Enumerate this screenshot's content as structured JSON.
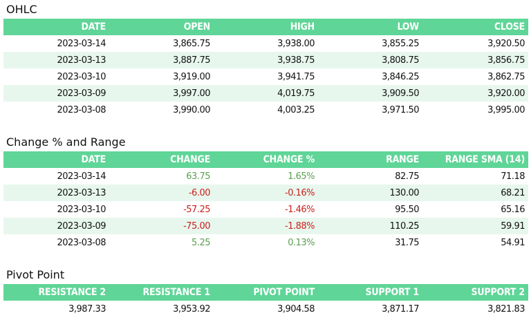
{
  "ohlc": {
    "title": "OHLC",
    "headers": [
      "DATE",
      "OPEN",
      "HIGH",
      "LOW",
      "CLOSE"
    ],
    "rows": [
      [
        "2023-03-14",
        "3,865.75",
        "3,938.00",
        "3,855.25",
        "3,920.50"
      ],
      [
        "2023-03-13",
        "3,887.75",
        "3,938.75",
        "3,808.75",
        "3,856.75"
      ],
      [
        "2023-03-10",
        "3,919.00",
        "3,941.75",
        "3,846.25",
        "3,862.75"
      ],
      [
        "2023-03-09",
        "3,997.00",
        "4,019.75",
        "3,909.50",
        "3,920.00"
      ],
      [
        "2023-03-08",
        "3,990.00",
        "4,003.25",
        "3,971.50",
        "3,995.00"
      ]
    ]
  },
  "change": {
    "title": "Change % and Range",
    "headers": [
      "DATE",
      "CHANGE",
      "CHANGE %",
      "RANGE",
      "RANGE SMA (14)"
    ],
    "rows": [
      [
        "2023-03-14",
        "63.75",
        "1.65%",
        "82.75",
        "71.18"
      ],
      [
        "2023-03-13",
        "-6.00",
        "-0.16%",
        "130.00",
        "68.21"
      ],
      [
        "2023-03-10",
        "-57.25",
        "-1.46%",
        "95.50",
        "65.16"
      ],
      [
        "2023-03-09",
        "-75.00",
        "-1.88%",
        "110.25",
        "59.91"
      ],
      [
        "2023-03-08",
        "5.25",
        "0.13%",
        "31.75",
        "54.91"
      ]
    ],
    "direction": [
      "positive",
      "negative",
      "negative",
      "negative",
      "positive"
    ]
  },
  "pivot": {
    "title": "Pivot Point",
    "headers": [
      "RESISTANCE 2",
      "RESISTANCE 1",
      "PIVOT POINT",
      "SUPPORT 1",
      "SUPPORT 2"
    ],
    "rows": [
      [
        "3,987.33",
        "3,953.92",
        "3,904.58",
        "3,871.17",
        "3,821.83"
      ]
    ]
  },
  "colors": {
    "header_bg": "#5fd597",
    "header_text": "#ffffff",
    "alt_row_bg": "#e7f7ee",
    "positive": "#5b9e51",
    "negative": "#c8201c"
  }
}
